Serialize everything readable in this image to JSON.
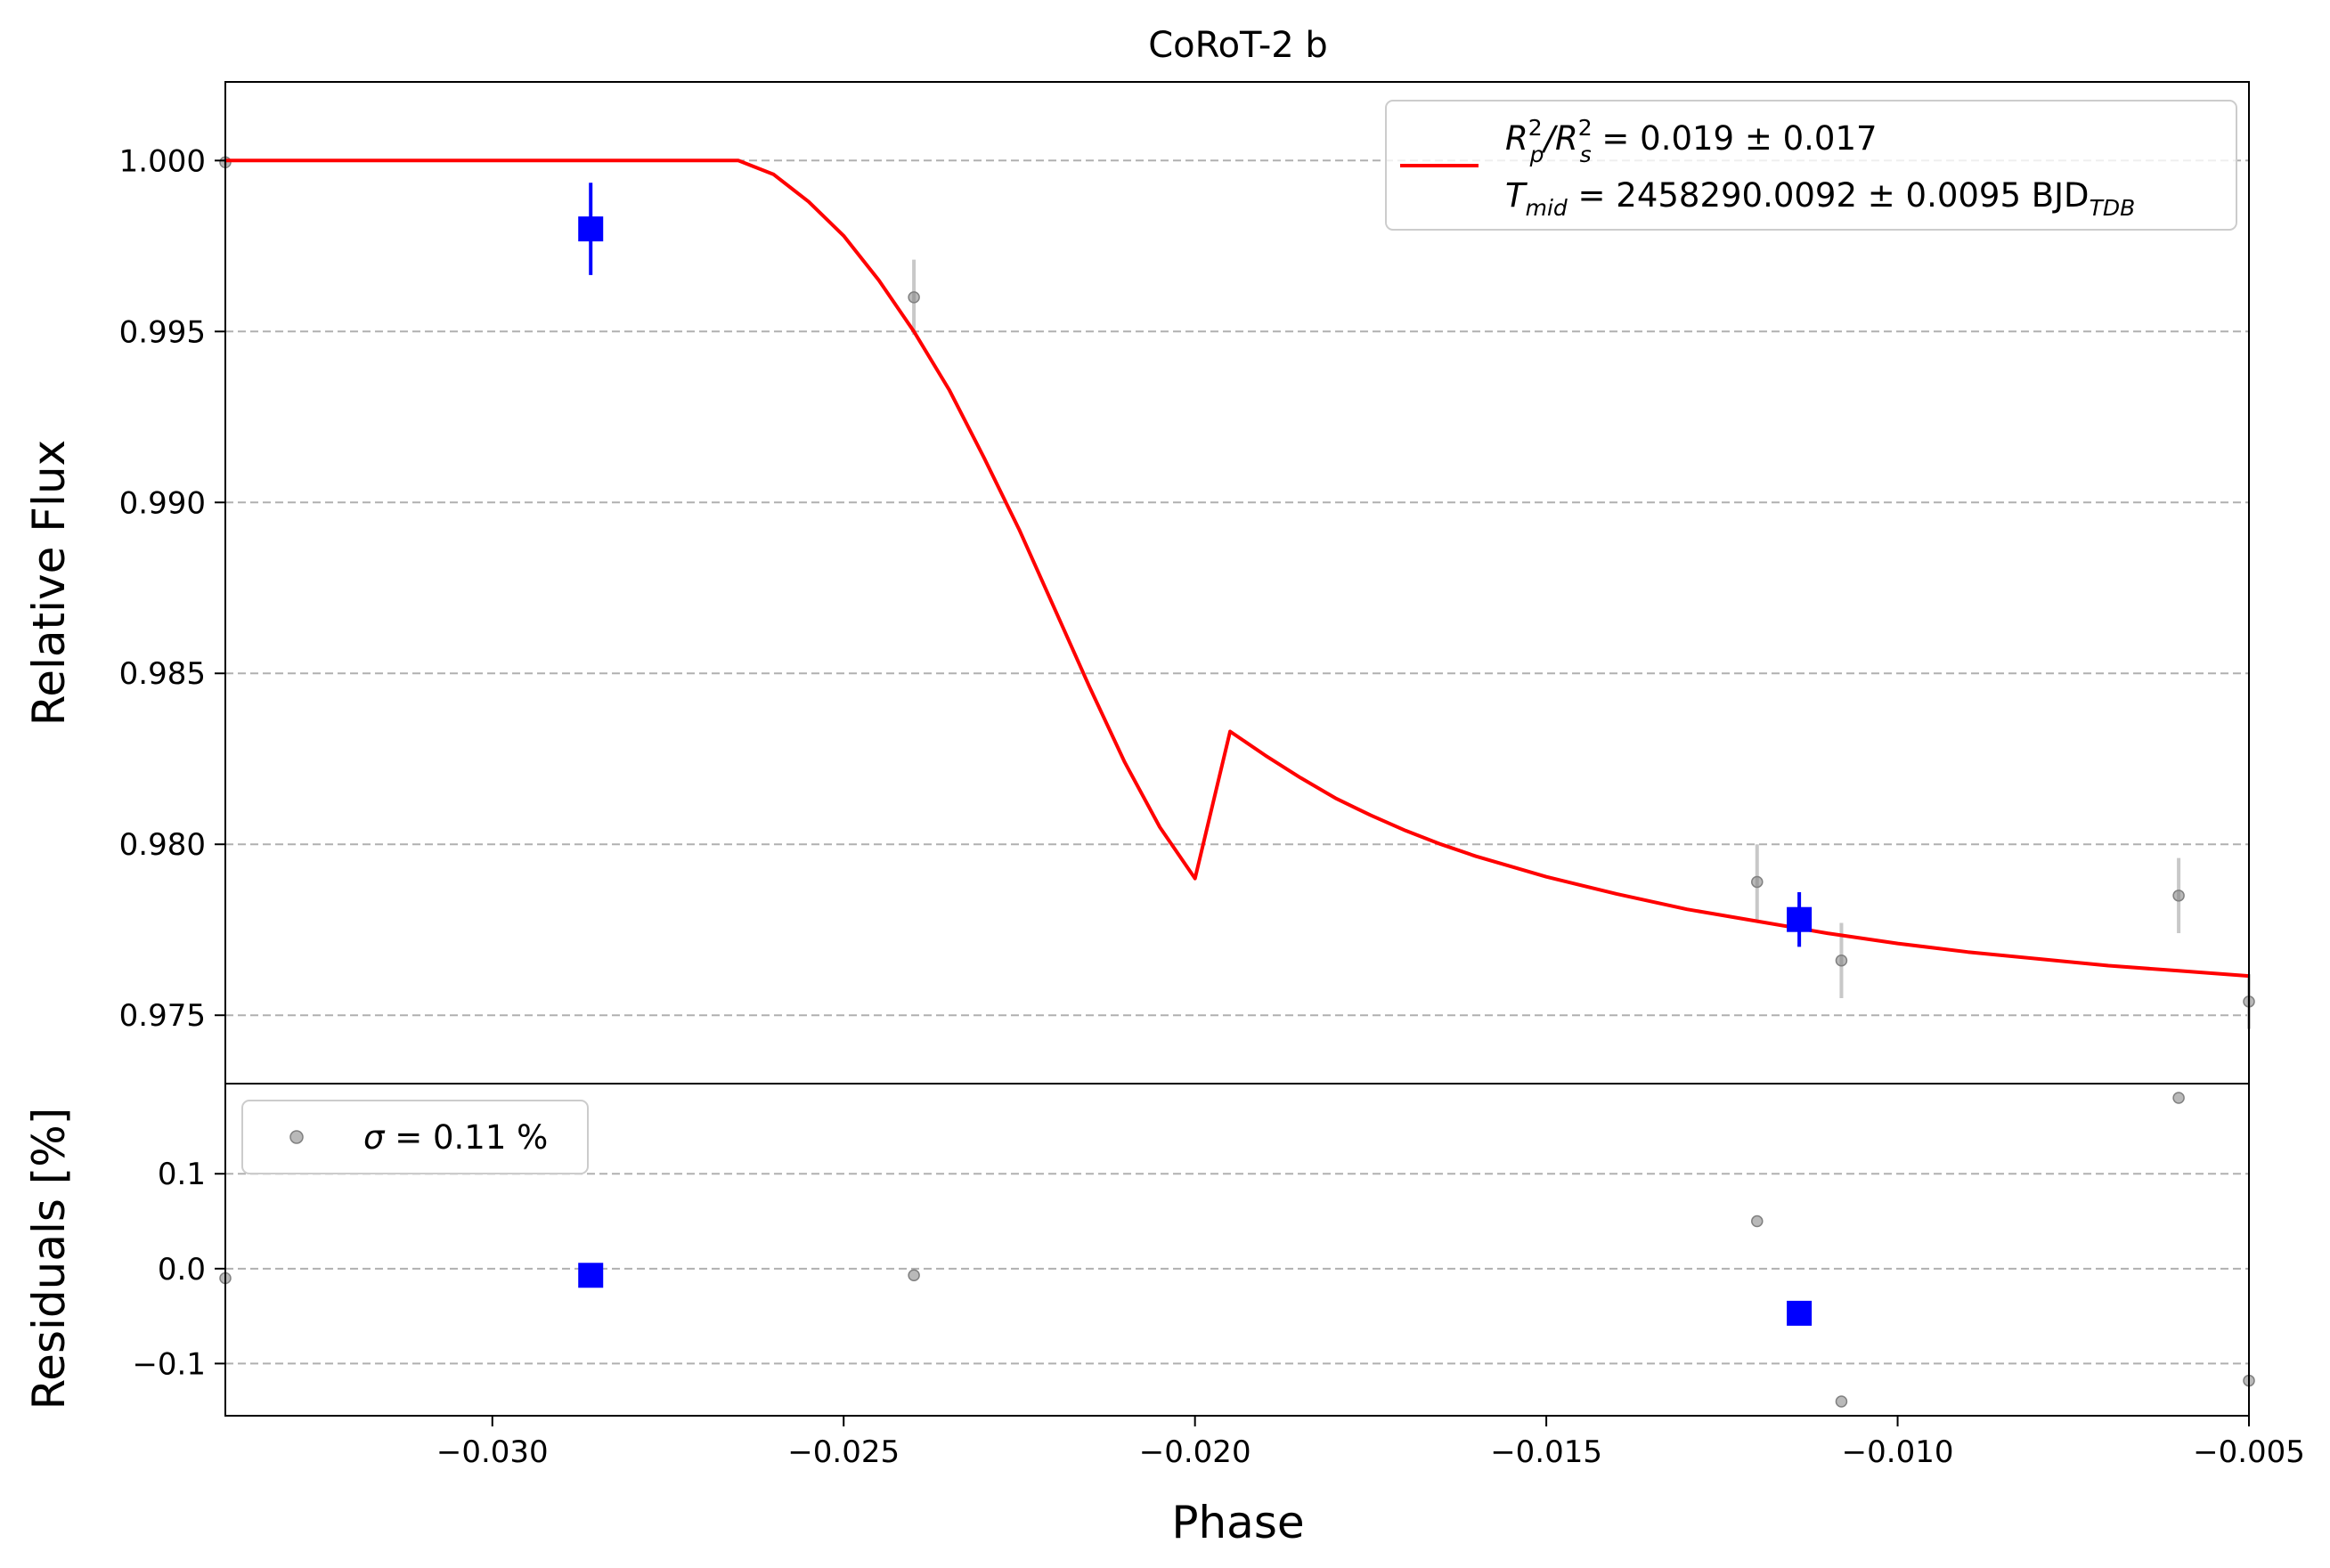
{
  "chart_data": {
    "type": "scatter",
    "title": "CoRoT-2 b",
    "xlabel": "Phase",
    "xlim": [
      -0.0338,
      -0.005
    ],
    "x_ticks": [
      "−0.030",
      "−0.025",
      "−0.020",
      "−0.015",
      "−0.010",
      "−0.005"
    ],
    "x_tick_values": [
      -0.03,
      -0.025,
      -0.02,
      -0.015,
      -0.01,
      -0.005
    ],
    "grid": "horizontal dashed",
    "top_panel": {
      "ylabel": "Relative Flux",
      "ylim": [
        0.973,
        1.0023
      ],
      "y_ticks": [
        "0.975",
        "0.980",
        "0.985",
        "0.990",
        "0.995",
        "1.000"
      ],
      "y_tick_values": [
        0.975,
        0.98,
        0.985,
        0.99,
        0.995,
        1.0
      ],
      "raw_points": [
        {
          "x": -0.0338,
          "y": 0.99995,
          "err": 0.0001
        },
        {
          "x": -0.024,
          "y": 0.996,
          "err": 0.0011
        },
        {
          "x": -0.012,
          "y": 0.9789,
          "err": 0.0011
        },
        {
          "x": -0.0108,
          "y": 0.9766,
          "err": 0.0011
        },
        {
          "x": -0.006,
          "y": 0.9785,
          "err": 0.0011
        },
        {
          "x": -0.005,
          "y": 0.9754,
          "err": 0.0008
        }
      ],
      "binned_points": [
        {
          "x": -0.0286,
          "y": 0.998,
          "err": 0.00135
        },
        {
          "x": -0.0114,
          "y": 0.9778,
          "err": 0.0008
        }
      ],
      "model": {
        "x": [
          -0.0338,
          -0.03,
          -0.0265,
          -0.026,
          -0.0255,
          -0.025,
          -0.0245,
          -0.024,
          -0.0235,
          -0.023,
          -0.0225,
          -0.022,
          -0.0215,
          -0.021,
          -0.0205,
          -0.02,
          -0.0195,
          -0.019,
          -0.0185,
          -0.018,
          -0.0175,
          -0.017,
          -0.0165,
          -0.016,
          -0.0155,
          -0.015,
          -0.014,
          -0.013,
          -0.012,
          -0.011,
          -0.01,
          -0.009,
          -0.008,
          -0.007,
          -0.006,
          -0.005
        ],
        "y": [
          1.0,
          1.0,
          1.0,
          0.9996,
          0.9988,
          0.9978,
          0.9965,
          0.995,
          0.9933,
          0.9913,
          0.9892,
          0.9869,
          0.9846,
          0.9824,
          0.9805,
          0.979,
          0.9833,
          0.9826,
          0.98195,
          0.98135,
          0.98085,
          0.9804,
          0.98,
          0.97965,
          0.97935,
          0.97905,
          0.97855,
          0.9781,
          0.97775,
          0.9774,
          0.9771,
          0.97685,
          0.97665,
          0.97645,
          0.9763,
          0.97615
        ]
      }
    },
    "bottom_panel": {
      "ylabel": "Residuals [%]",
      "ylim": [
        -0.155,
        0.195
      ],
      "y_ticks": [
        "−0.1",
        "0.0",
        "0.1"
      ],
      "y_tick_values": [
        -0.1,
        0.0,
        0.1
      ],
      "raw_points": [
        {
          "x": -0.0338,
          "y": -0.01
        },
        {
          "x": -0.024,
          "y": -0.007
        },
        {
          "x": -0.012,
          "y": 0.05
        },
        {
          "x": -0.0108,
          "y": -0.14
        },
        {
          "x": -0.006,
          "y": 0.18
        },
        {
          "x": -0.005,
          "y": -0.118
        }
      ],
      "binned_points": [
        {
          "x": -0.0286,
          "y": -0.007
        },
        {
          "x": -0.0114,
          "y": -0.047
        }
      ]
    },
    "legend_top": {
      "placement": "upper-right",
      "entries": [
        {
          "line1_a": "R",
          "line1_a_sup": "2",
          "line1_a_sub": "p",
          "line1_b": "/R",
          "line1_b_sup": "2",
          "line1_b_sub": "s",
          "line1_rest": " = 0.019 ± 0.017",
          "line2_a": "T",
          "line2_a_sub": "mid",
          "line2_rest": " = 2458290.0092 ± 0.0095 BJD",
          "line2_rest_sub": "TDB"
        }
      ]
    },
    "legend_bottom": {
      "placement": "upper-left",
      "sigma_symbol": "σ",
      "text": " = 0.11 %"
    },
    "colors": {
      "model": "#ff0000",
      "binned": "#0000ff",
      "raw": "#808080",
      "raw_err": "#c8c8c8",
      "grid": "#b0b0b0"
    }
  }
}
